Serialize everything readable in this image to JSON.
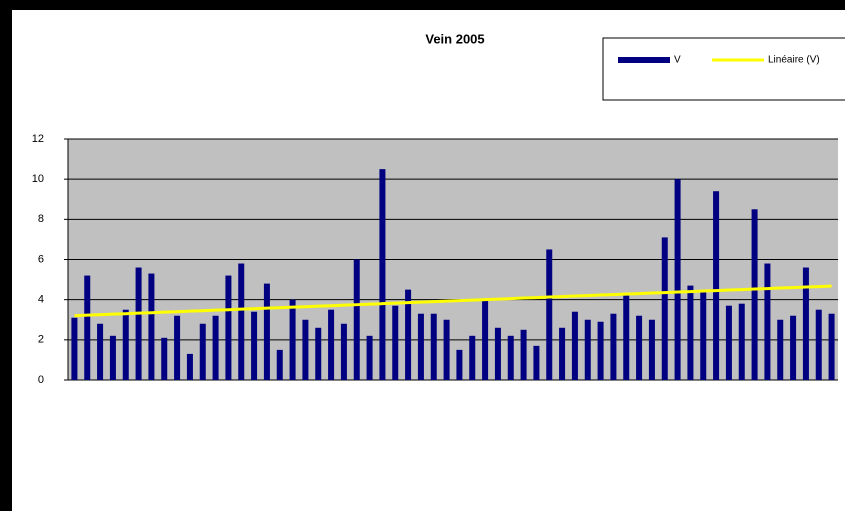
{
  "chart_data": {
    "type": "bar",
    "title": "Vein 2005",
    "categories": [
      null,
      null,
      null,
      null,
      null,
      null,
      null,
      null,
      null,
      null,
      null,
      null,
      null,
      null,
      null,
      null,
      null,
      null,
      null,
      null,
      null,
      null,
      null,
      null,
      null,
      null,
      null,
      null,
      null,
      null,
      null,
      null,
      null,
      null,
      null,
      null,
      null,
      null,
      null,
      null,
      null,
      null,
      null,
      null,
      null,
      null,
      null,
      null,
      null,
      null,
      null,
      null,
      null,
      null,
      null,
      null,
      null,
      null,
      null,
      null
    ],
    "series": [
      {
        "name": "V",
        "color": "#000080",
        "type": "bar",
        "values": [
          3.1,
          5.2,
          2.8,
          2.2,
          3.5,
          5.6,
          5.3,
          2.1,
          3.2,
          1.3,
          2.8,
          3.2,
          5.2,
          5.8,
          3.4,
          4.8,
          1.5,
          4.0,
          3.0,
          2.6,
          3.5,
          2.8,
          6.0,
          2.2,
          10.5,
          3.7,
          4.5,
          3.3,
          3.3,
          3.0,
          1.5,
          2.2,
          4.0,
          2.6,
          2.2,
          2.5,
          1.7,
          6.5,
          2.6,
          3.4,
          3.0,
          2.9,
          3.3,
          4.2,
          3.2,
          3.0,
          7.1,
          10.0,
          4.7,
          4.4,
          9.4,
          3.7,
          3.8,
          8.5,
          5.8,
          3.0,
          3.2,
          5.6,
          3.5,
          3.3
        ]
      },
      {
        "name": "Linéaire (V)",
        "color": "#ffff00",
        "type": "line",
        "values": [
          3.2,
          3.23,
          3.25,
          3.28,
          3.3,
          3.33,
          3.35,
          3.38,
          3.4,
          3.43,
          3.45,
          3.48,
          3.5,
          3.53,
          3.55,
          3.58,
          3.6,
          3.63,
          3.65,
          3.68,
          3.7,
          3.73,
          3.75,
          3.78,
          3.8,
          3.83,
          3.85,
          3.88,
          3.9,
          3.93,
          3.95,
          3.98,
          4.0,
          4.03,
          4.05,
          4.08,
          4.1,
          4.13,
          4.15,
          4.18,
          4.2,
          4.23,
          4.25,
          4.28,
          4.3,
          4.33,
          4.35,
          4.38,
          4.4,
          4.43,
          4.45,
          4.48,
          4.5,
          4.53,
          4.55,
          4.58,
          4.6,
          4.63,
          4.65,
          4.68
        ]
      }
    ],
    "ylim": [
      0,
      12
    ],
    "yticks": [
      0,
      2,
      4,
      6,
      8,
      10,
      12
    ],
    "grid": true,
    "plot_background": "#c0c0c0",
    "legend": "top-right"
  }
}
